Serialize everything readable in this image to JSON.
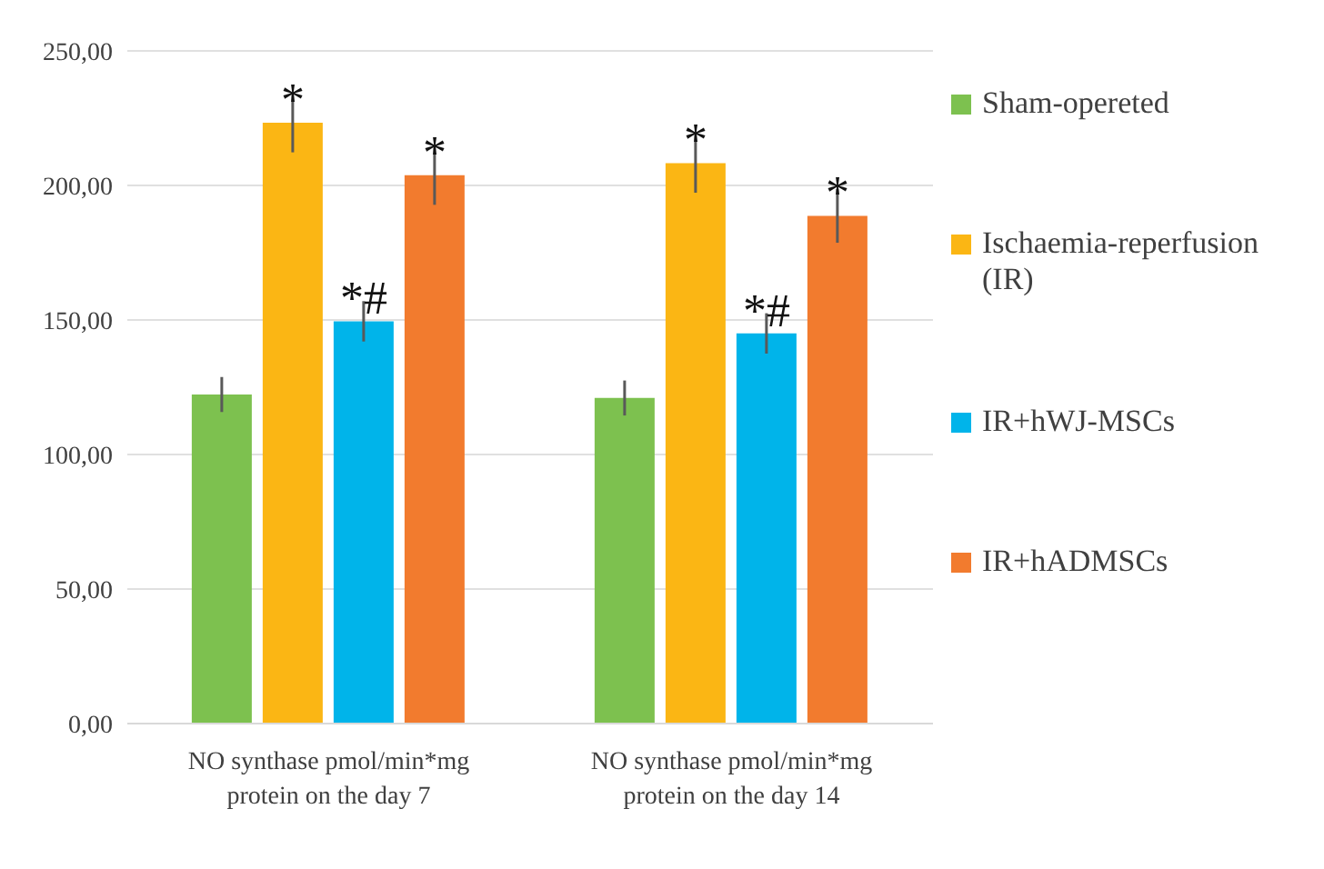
{
  "chart_data": {
    "type": "bar",
    "categories": [
      "NO synthase pmol/min*mg protein on the day 7",
      "NO synthase pmol/min*mg protein on the day 14"
    ],
    "series": [
      {
        "name": "Sham-opereted",
        "color": "#7dc14f",
        "values": [
          122.3,
          121
        ],
        "errors": [
          6.5,
          6.5
        ]
      },
      {
        "name": "Ischaemia-reperfusion (IR)",
        "color": "#fbb614",
        "values": [
          223.3,
          208.3
        ],
        "errors": [
          11,
          11
        ],
        "value_labels": [
          "*",
          "*"
        ]
      },
      {
        "name": "IR+hWJ-MSCs",
        "color": "#00b4ea",
        "values": [
          149.5,
          145
        ],
        "errors": [
          7.5,
          7.5
        ],
        "value_labels": [
          "*#",
          "*#"
        ]
      },
      {
        "name": "IR+hADMSCs",
        "color": "#f27b2e",
        "values": [
          203.8,
          188.7
        ],
        "errors": [
          11,
          10
        ],
        "value_labels": [
          "*",
          "*"
        ]
      }
    ],
    "ylim": [
      0,
      250
    ],
    "yticks": [
      {
        "value": 0,
        "label": "0,00"
      },
      {
        "value": 50,
        "label": "50,00"
      },
      {
        "value": 100,
        "label": "100,00"
      },
      {
        "value": 150,
        "label": "150,00"
      },
      {
        "value": 200,
        "label": "200,00"
      },
      {
        "value": 250,
        "label": "250,00"
      }
    ],
    "grid": "y",
    "legend": "right"
  }
}
